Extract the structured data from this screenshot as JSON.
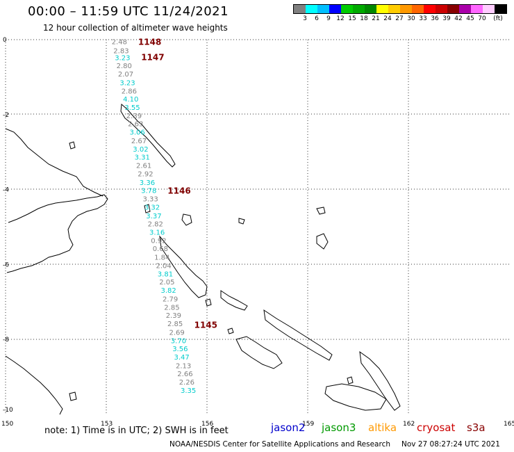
{
  "header": {
    "title": "00:00 – 11:59 UTC 11/24/2021",
    "subtitle": "12 hour collection of altimeter wave heights"
  },
  "legend": {
    "colors": [
      "#808080",
      "#00ffff",
      "#00bfff",
      "#0000ff",
      "#00cc00",
      "#00aa00",
      "#008800",
      "#ffff00",
      "#ffcc00",
      "#ff9900",
      "#ff6600",
      "#ff0000",
      "#cc0000",
      "#880000",
      "#aa00aa",
      "#ff66ff",
      "#ffccff",
      "#000000"
    ],
    "labels": [
      "3",
      "6",
      "9",
      "12",
      "15",
      "18",
      "21",
      "24",
      "27",
      "30",
      "33",
      "36",
      "39",
      "42",
      "45",
      "70",
      "(ft)"
    ]
  },
  "axes": {
    "x_ticks": [
      "150",
      "153",
      "156",
      "159",
      "162",
      "165"
    ],
    "y_ticks": [
      "0",
      "-2",
      "-4",
      "-6",
      "-8",
      "-10"
    ]
  },
  "track": {
    "points": [
      {
        "lat": -0.05,
        "value": "2.48",
        "color": "#808080"
      },
      {
        "lat": -0.29,
        "value": "2.83",
        "color": "#808080"
      },
      {
        "lat": -0.47,
        "value": "3.23",
        "color": "#00cccc"
      },
      {
        "lat": -0.69,
        "value": "2.80",
        "color": "#808080"
      },
      {
        "lat": -0.91,
        "value": "2.07",
        "color": "#808080"
      },
      {
        "lat": -1.14,
        "value": "3.23",
        "color": "#00cccc"
      },
      {
        "lat": -1.36,
        "value": "2.86",
        "color": "#808080"
      },
      {
        "lat": -1.58,
        "value": "4.10",
        "color": "#00cccc"
      },
      {
        "lat": -1.8,
        "value": "3.55",
        "color": "#00cccc"
      },
      {
        "lat": -2.02,
        "value": "2.39",
        "color": "#808080"
      },
      {
        "lat": -2.24,
        "value": "2.63",
        "color": "#808080"
      },
      {
        "lat": -2.46,
        "value": "3.06",
        "color": "#00cccc"
      },
      {
        "lat": -2.69,
        "value": "2.67",
        "color": "#808080"
      },
      {
        "lat": -2.91,
        "value": "3.02",
        "color": "#00cccc"
      },
      {
        "lat": -3.13,
        "value": "3.31",
        "color": "#00cccc"
      },
      {
        "lat": -3.35,
        "value": "2.61",
        "color": "#808080"
      },
      {
        "lat": -3.57,
        "value": "2.92",
        "color": "#808080"
      },
      {
        "lat": -3.8,
        "value": "3.36",
        "color": "#00cccc"
      },
      {
        "lat": -4.02,
        "value": "3.78",
        "color": "#00cccc"
      },
      {
        "lat": -4.24,
        "value": "3.33",
        "color": "#808080"
      },
      {
        "lat": -4.46,
        "value": "3.32",
        "color": "#00cccc"
      },
      {
        "lat": -4.69,
        "value": "3.37",
        "color": "#00cccc"
      },
      {
        "lat": -4.91,
        "value": "2.82",
        "color": "#808080"
      },
      {
        "lat": -5.13,
        "value": "3.16",
        "color": "#00cccc"
      },
      {
        "lat": -5.35,
        "value": "0.92",
        "color": "#808080"
      },
      {
        "lat": -5.57,
        "value": "0.68",
        "color": "#808080"
      },
      {
        "lat": -5.8,
        "value": "1.84",
        "color": "#808080"
      },
      {
        "lat": -6.02,
        "value": "2.04",
        "color": "#808080"
      },
      {
        "lat": -6.24,
        "value": "3.81",
        "color": "#00cccc"
      },
      {
        "lat": -6.46,
        "value": "2.05",
        "color": "#808080"
      },
      {
        "lat": -6.68,
        "value": "3.82",
        "color": "#00cccc"
      },
      {
        "lat": -6.91,
        "value": "2.79",
        "color": "#808080"
      },
      {
        "lat": -7.13,
        "value": "2.85",
        "color": "#808080"
      },
      {
        "lat": -7.35,
        "value": "2.39",
        "color": "#808080"
      },
      {
        "lat": -7.57,
        "value": "2.85",
        "color": "#808080"
      },
      {
        "lat": -7.8,
        "value": "2.69",
        "color": "#808080"
      },
      {
        "lat": -8.02,
        "value": "3.70",
        "color": "#00cccc"
      },
      {
        "lat": -8.24,
        "value": "3.56",
        "color": "#00cccc"
      },
      {
        "lat": -8.46,
        "value": "3.47",
        "color": "#00cccc"
      },
      {
        "lat": -8.69,
        "value": "2.13",
        "color": "#808080"
      },
      {
        "lat": -8.91,
        "value": "2.66",
        "color": "#808080"
      },
      {
        "lat": -9.13,
        "value": "2.26",
        "color": "#808080"
      },
      {
        "lat": -9.35,
        "value": "3.35",
        "color": "#00cccc"
      }
    ],
    "times": [
      {
        "lat": -0.05,
        "label": "1148"
      },
      {
        "lat": -0.45,
        "label": "1147"
      },
      {
        "lat": -4.02,
        "label": "1146"
      },
      {
        "lat": -7.6,
        "label": "1145"
      }
    ],
    "time_color": "#800000"
  },
  "footer": {
    "note": "note:  1) Time is in UTC;  2) SWH is in feet",
    "credit": "NOAA/NESDIS Center for Satellite Applications and Research",
    "stamp": "Nov 27 08:27:24 UTC 2021",
    "satellites": [
      {
        "name": "jason2",
        "color": "#0000cc"
      },
      {
        "name": "jason3",
        "color": "#009900"
      },
      {
        "name": "altika",
        "color": "#ff9900"
      },
      {
        "name": "cryosat",
        "color": "#cc0000"
      },
      {
        "name": "s3a",
        "color": "#880000"
      }
    ]
  }
}
